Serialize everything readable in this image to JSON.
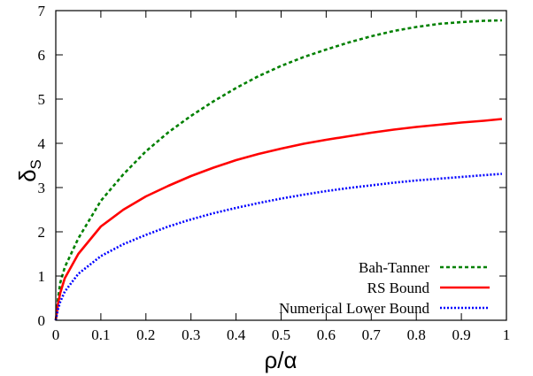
{
  "chart_data": {
    "type": "line",
    "title": "",
    "xlabel": "ρ/α",
    "ylabel": "δ",
    "ylabel_subscript": "S",
    "xlim": [
      0,
      1
    ],
    "ylim": [
      0,
      7
    ],
    "x_ticks": [
      "0",
      "0.1",
      "0.2",
      "0.3",
      "0.4",
      "0.5",
      "0.6",
      "0.7",
      "0.8",
      "0.9",
      "1"
    ],
    "y_ticks": [
      "0",
      "1",
      "2",
      "3",
      "4",
      "5",
      "6",
      "7"
    ],
    "grid": false,
    "legend_position": "bottom-right",
    "series": [
      {
        "name": "Bah-Tanner",
        "color": "#008000",
        "dash": "dashed",
        "x": [
          0,
          0.005,
          0.01,
          0.02,
          0.05,
          0.1,
          0.15,
          0.2,
          0.25,
          0.3,
          0.35,
          0.4,
          0.45,
          0.5,
          0.55,
          0.6,
          0.65,
          0.7,
          0.75,
          0.8,
          0.85,
          0.9,
          0.95,
          0.99
        ],
        "y": [
          0,
          0.5,
          0.85,
          1.2,
          1.85,
          2.7,
          3.3,
          3.82,
          4.25,
          4.62,
          4.95,
          5.25,
          5.52,
          5.75,
          5.95,
          6.12,
          6.28,
          6.42,
          6.54,
          6.63,
          6.7,
          6.74,
          6.77,
          6.78
        ]
      },
      {
        "name": "RS Bound",
        "color": "#ff0000",
        "dash": "solid",
        "x": [
          0,
          0.005,
          0.01,
          0.02,
          0.05,
          0.1,
          0.15,
          0.2,
          0.25,
          0.3,
          0.35,
          0.4,
          0.45,
          0.5,
          0.55,
          0.6,
          0.65,
          0.7,
          0.75,
          0.8,
          0.85,
          0.9,
          0.95,
          0.99
        ],
        "y": [
          0,
          0.38,
          0.62,
          0.95,
          1.5,
          2.12,
          2.5,
          2.8,
          3.04,
          3.26,
          3.45,
          3.62,
          3.76,
          3.88,
          3.99,
          4.08,
          4.16,
          4.24,
          4.31,
          4.37,
          4.42,
          4.47,
          4.51,
          4.55
        ]
      },
      {
        "name": "Numerical Lower Bound",
        "color": "#0000ff",
        "dash": "dotted",
        "x": [
          0,
          0.005,
          0.01,
          0.02,
          0.05,
          0.1,
          0.15,
          0.2,
          0.25,
          0.3,
          0.35,
          0.4,
          0.45,
          0.5,
          0.55,
          0.6,
          0.65,
          0.7,
          0.75,
          0.8,
          0.85,
          0.9,
          0.95,
          0.99
        ],
        "y": [
          0,
          0.25,
          0.42,
          0.65,
          1.05,
          1.45,
          1.72,
          1.93,
          2.12,
          2.28,
          2.42,
          2.54,
          2.65,
          2.75,
          2.84,
          2.92,
          2.99,
          3.05,
          3.11,
          3.16,
          3.2,
          3.24,
          3.28,
          3.31
        ]
      }
    ]
  }
}
